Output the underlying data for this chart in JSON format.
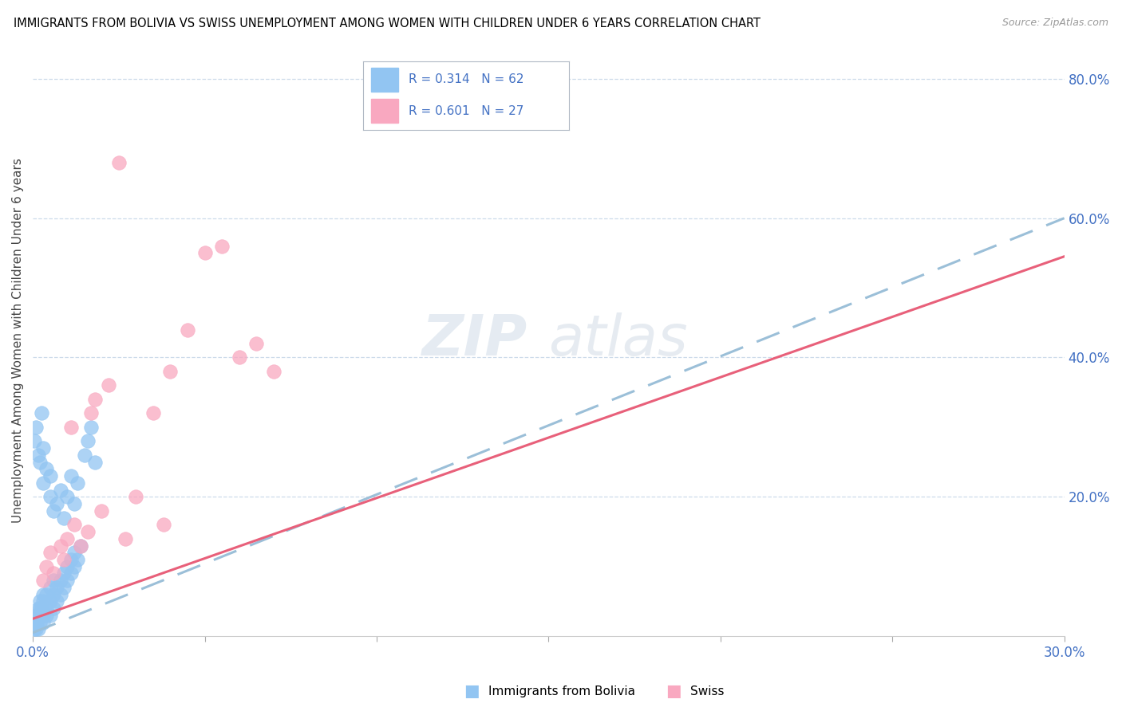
{
  "title": "IMMIGRANTS FROM BOLIVIA VS SWISS UNEMPLOYMENT AMONG WOMEN WITH CHILDREN UNDER 6 YEARS CORRELATION CHART",
  "source": "Source: ZipAtlas.com",
  "ylabel": "Unemployment Among Women with Children Under 6 years",
  "xlim": [
    0.0,
    0.3
  ],
  "ylim": [
    0.0,
    0.85
  ],
  "xticks": [
    0.0,
    0.05,
    0.1,
    0.15,
    0.2,
    0.25,
    0.3
  ],
  "xticklabels": [
    "0.0%",
    "",
    "",
    "",
    "",
    "",
    "30.0%"
  ],
  "yticks_right": [
    0.2,
    0.4,
    0.6,
    0.8
  ],
  "yticklabels_right": [
    "20.0%",
    "40.0%",
    "60.0%",
    "80.0%"
  ],
  "blue_color": "#92C5F2",
  "pink_color": "#F9A8C0",
  "blue_line_color": "#4a86c8",
  "pink_line_color": "#e8607a",
  "blue_dashed_color": "#9bbfd8",
  "watermark_zip": "ZIP",
  "watermark_atlas": "atlas",
  "blue_line_y0": 0.005,
  "blue_line_y1": 0.6,
  "pink_line_y0": 0.025,
  "pink_line_y1": 0.545,
  "blue_scatter_x": [
    0.0005,
    0.0008,
    0.001,
    0.001,
    0.0012,
    0.0015,
    0.0015,
    0.0018,
    0.002,
    0.002,
    0.002,
    0.0022,
    0.0025,
    0.003,
    0.003,
    0.003,
    0.003,
    0.004,
    0.004,
    0.004,
    0.005,
    0.005,
    0.005,
    0.006,
    0.006,
    0.006,
    0.007,
    0.007,
    0.008,
    0.008,
    0.009,
    0.009,
    0.01,
    0.01,
    0.011,
    0.011,
    0.012,
    0.012,
    0.013,
    0.014,
    0.0005,
    0.001,
    0.0015,
    0.002,
    0.0025,
    0.003,
    0.003,
    0.004,
    0.005,
    0.005,
    0.006,
    0.007,
    0.008,
    0.009,
    0.01,
    0.011,
    0.012,
    0.013,
    0.015,
    0.016,
    0.017,
    0.018
  ],
  "blue_scatter_y": [
    0.01,
    0.02,
    0.01,
    0.03,
    0.02,
    0.01,
    0.04,
    0.03,
    0.02,
    0.04,
    0.05,
    0.03,
    0.04,
    0.02,
    0.03,
    0.05,
    0.06,
    0.03,
    0.04,
    0.06,
    0.03,
    0.05,
    0.07,
    0.04,
    0.06,
    0.08,
    0.05,
    0.07,
    0.06,
    0.08,
    0.07,
    0.09,
    0.08,
    0.1,
    0.09,
    0.11,
    0.1,
    0.12,
    0.11,
    0.13,
    0.28,
    0.3,
    0.26,
    0.25,
    0.32,
    0.22,
    0.27,
    0.24,
    0.2,
    0.23,
    0.18,
    0.19,
    0.21,
    0.17,
    0.2,
    0.23,
    0.19,
    0.22,
    0.26,
    0.28,
    0.3,
    0.25
  ],
  "pink_scatter_x": [
    0.003,
    0.004,
    0.005,
    0.006,
    0.008,
    0.009,
    0.01,
    0.011,
    0.012,
    0.014,
    0.016,
    0.017,
    0.018,
    0.02,
    0.022,
    0.025,
    0.027,
    0.03,
    0.035,
    0.038,
    0.04,
    0.045,
    0.05,
    0.055,
    0.06,
    0.065,
    0.07
  ],
  "pink_scatter_y": [
    0.08,
    0.1,
    0.12,
    0.09,
    0.13,
    0.11,
    0.14,
    0.3,
    0.16,
    0.13,
    0.15,
    0.32,
    0.34,
    0.18,
    0.36,
    0.68,
    0.14,
    0.2,
    0.32,
    0.16,
    0.38,
    0.44,
    0.55,
    0.56,
    0.4,
    0.42,
    0.38
  ]
}
